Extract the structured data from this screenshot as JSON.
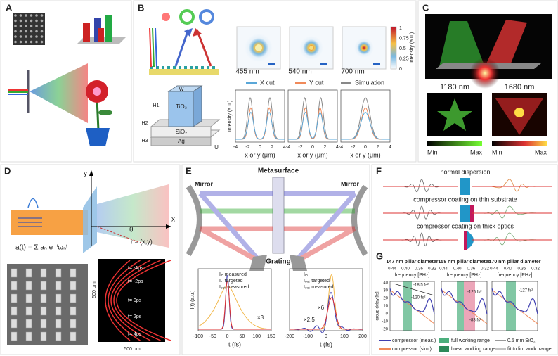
{
  "A": {
    "label": "A"
  },
  "B": {
    "label": "B",
    "wavelengths": [
      "455 nm",
      "540 nm",
      "700 nm"
    ],
    "colorbar_ticks": [
      "1",
      "0.75",
      "0.5",
      "0.25",
      "0"
    ],
    "colorbar_title": "Intensity (a.u.)",
    "legend": [
      "X cut",
      "Y cut",
      "Simulation"
    ],
    "y_axis": "Intensity (a.u.)",
    "x_axis": "x or y (μm)",
    "x_ticks": [
      "-4",
      "-2",
      "0",
      "2",
      "4"
    ],
    "layers": [
      "H1",
      "TiO₂",
      "H2",
      "SiO₂",
      "H3",
      "Ag",
      "W",
      "U"
    ]
  },
  "C": {
    "label": "C",
    "wavelengths": [
      "1180 nm",
      "1680 nm"
    ],
    "scale": [
      "Min",
      "Max"
    ]
  },
  "D": {
    "label": "D",
    "axes": [
      "y",
      "x"
    ],
    "formula": "a(t) = Σ aₙ e⁻ⁱωₙᵗ",
    "angle": "θ",
    "position": "r = (x,y)",
    "times": [
      "t= -4ps",
      "t= -2ps",
      "t= 0ps",
      "t= 2ps",
      "t= 4ps"
    ],
    "scale_bar": "500 μm"
  },
  "E": {
    "label": "E",
    "metasurface": "Metasurface",
    "mirror": "Mirror",
    "grating": "Grating",
    "legend_left": [
      "Iᵢₙ measured",
      "Iᵢₙ targeted",
      "Iₒᵤₜ measured"
    ],
    "legend_right": [
      "Iᵢₙ",
      "Iₒᵤₜ targeted",
      "Iₒᵤₜ measured"
    ],
    "y_axis": "I(t) (a.u.)",
    "x_axis": "t (fs)",
    "x_ticks_left": [
      "-100",
      "-50",
      "0",
      "50",
      "100",
      "150"
    ],
    "x_ticks_right": [
      "-200",
      "-100",
      "0",
      "100",
      "200"
    ],
    "annotations": [
      "×3",
      "×2.5",
      "×6"
    ]
  },
  "F": {
    "label": "F",
    "captions": [
      "normal dispersion",
      "compressor coating on thin substrate",
      "compressor coating on thick optics"
    ]
  },
  "G": {
    "label": "G",
    "titles": [
      "147 nm pillar diameter",
      "158 nm pillar diameter",
      "170 nm pillar diameter"
    ],
    "x_axis": "frequency [PHz]",
    "x_ticks": [
      "0.44",
      "0.40",
      "0.36",
      "0.32"
    ],
    "y_axis": "group delay [fs]",
    "y_ticks": [
      "40",
      "30",
      "20",
      "10",
      "0",
      "-10",
      "-20"
    ],
    "annotations": [
      "-18.5 fs²",
      "-120 fs²",
      "-126 fs²",
      "-83 fs²",
      "-127 fs²"
    ],
    "legend": [
      "compressor (meas.)",
      "compressor (sim.)",
      "full working range",
      "linear working range",
      "0.5 mm SiO₂",
      "fit to lin. work. range"
    ]
  }
}
